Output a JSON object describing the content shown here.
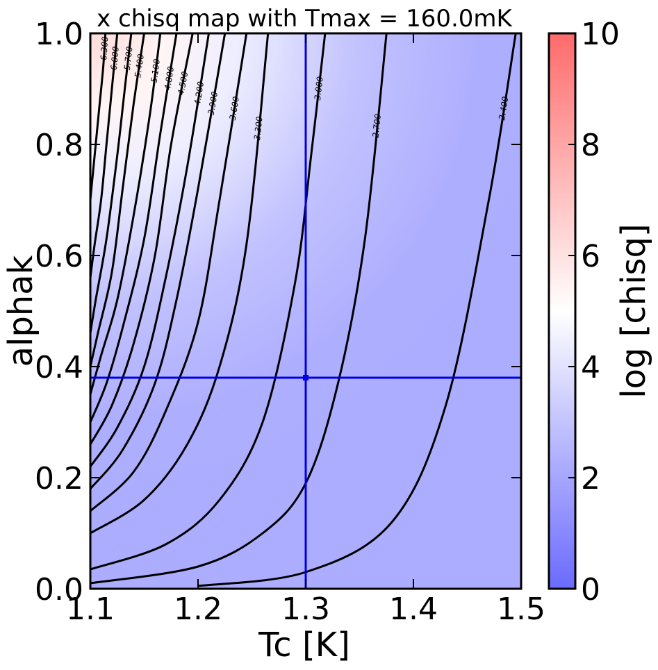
{
  "chart_data": [
    {
      "type": "contour",
      "title": "x chisq map with Tmax = 160.0mK",
      "xlabel": "Tc [K]",
      "ylabel": "alphak",
      "xlim": [
        1.1,
        1.5
      ],
      "ylim": [
        0.0,
        1.0
      ],
      "xticks": [
        "1.1",
        "1.2",
        "1.3",
        "1.4",
        "1.5"
      ],
      "yticks": [
        "0.0",
        "0.2",
        "0.4",
        "0.6",
        "0.8",
        "1.0"
      ],
      "grid": false,
      "colormap": {
        "low": "#5555ff",
        "mid": "#ffffff",
        "high": "#ff5555"
      },
      "contour_levels": [
        {
          "label": "2.400",
          "points": [
            [
              1.2,
              0.005
            ],
            [
              1.3,
              0.03
            ],
            [
              1.38,
              0.12
            ],
            [
              1.43,
              0.33
            ],
            [
              1.47,
              0.7
            ],
            [
              1.495,
              1.0
            ]
          ]
        },
        {
          "label": "2.700",
          "points": [
            [
              1.1,
              0.01
            ],
            [
              1.2,
              0.04
            ],
            [
              1.26,
              0.1
            ],
            [
              1.3,
              0.19
            ],
            [
              1.33,
              0.37
            ],
            [
              1.355,
              0.63
            ],
            [
              1.375,
              1.0
            ]
          ]
        },
        {
          "label": "3.000",
          "points": [
            [
              1.1,
              0.035
            ],
            [
              1.17,
              0.08
            ],
            [
              1.22,
              0.16
            ],
            [
              1.26,
              0.3
            ],
            [
              1.29,
              0.55
            ],
            [
              1.305,
              0.78
            ],
            [
              1.318,
              1.0
            ]
          ]
        },
        {
          "label": "3.300",
          "points": [
            [
              1.1,
              0.1
            ],
            [
              1.15,
              0.16
            ],
            [
              1.19,
              0.26
            ],
            [
              1.22,
              0.4
            ],
            [
              1.245,
              0.62
            ],
            [
              1.265,
              1.0
            ]
          ]
        },
        {
          "label": "3.600",
          "points": [
            [
              1.1,
              0.14
            ],
            [
              1.14,
              0.21
            ],
            [
              1.17,
              0.32
            ],
            [
              1.2,
              0.48
            ],
            [
              1.22,
              0.7
            ],
            [
              1.245,
              1.0
            ]
          ]
        },
        {
          "label": "3.900",
          "points": [
            [
              1.1,
              0.18
            ],
            [
              1.13,
              0.25
            ],
            [
              1.16,
              0.37
            ],
            [
              1.18,
              0.52
            ],
            [
              1.2,
              0.72
            ],
            [
              1.225,
              1.0
            ]
          ]
        },
        {
          "label": "4.200",
          "points": [
            [
              1.1,
              0.22
            ],
            [
              1.125,
              0.29
            ],
            [
              1.15,
              0.4
            ],
            [
              1.17,
              0.56
            ],
            [
              1.19,
              0.76
            ],
            [
              1.21,
              1.0
            ]
          ]
        },
        {
          "label": "4.500",
          "points": [
            [
              1.1,
              0.26
            ],
            [
              1.12,
              0.33
            ],
            [
              1.14,
              0.44
            ],
            [
              1.16,
              0.6
            ],
            [
              1.175,
              0.8
            ],
            [
              1.195,
              1.0
            ]
          ]
        },
        {
          "label": "4.800",
          "points": [
            [
              1.1,
              0.3
            ],
            [
              1.115,
              0.37
            ],
            [
              1.13,
              0.47
            ],
            [
              1.15,
              0.63
            ],
            [
              1.165,
              0.82
            ],
            [
              1.18,
              1.0
            ]
          ]
        },
        {
          "label": "5.100",
          "points": [
            [
              1.1,
              0.35
            ],
            [
              1.11,
              0.42
            ],
            [
              1.125,
              0.52
            ],
            [
              1.14,
              0.67
            ],
            [
              1.155,
              0.85
            ],
            [
              1.165,
              1.0
            ]
          ]
        },
        {
          "label": "5.400",
          "points": [
            [
              1.1,
              0.4
            ],
            [
              1.107,
              0.46
            ],
            [
              1.12,
              0.57
            ],
            [
              1.13,
              0.72
            ],
            [
              1.14,
              0.87
            ],
            [
              1.15,
              1.0
            ]
          ]
        },
        {
          "label": "5.700",
          "points": [
            [
              1.1,
              0.46
            ],
            [
              1.105,
              0.52
            ],
            [
              1.115,
              0.63
            ],
            [
              1.125,
              0.78
            ],
            [
              1.132,
              0.9
            ],
            [
              1.138,
              1.0
            ]
          ]
        },
        {
          "label": "6.000",
          "points": [
            [
              1.1,
              0.56
            ],
            [
              1.104,
              0.62
            ],
            [
              1.11,
              0.7
            ],
            [
              1.115,
              0.8
            ],
            [
              1.12,
              0.9
            ],
            [
              1.125,
              1.0
            ]
          ]
        },
        {
          "label": "6.300",
          "points": [
            [
              1.1,
              0.7
            ],
            [
              1.104,
              0.78
            ],
            [
              1.108,
              0.86
            ],
            [
              1.112,
              0.94
            ],
            [
              1.114,
              1.0
            ]
          ]
        }
      ],
      "best_fit": {
        "x": 1.3,
        "y": 0.38
      },
      "colorbar": {
        "label": "log [chisq]",
        "range": [
          0,
          10
        ],
        "ticks": [
          "0",
          "2",
          "4",
          "6",
          "8",
          "10"
        ]
      }
    }
  ]
}
